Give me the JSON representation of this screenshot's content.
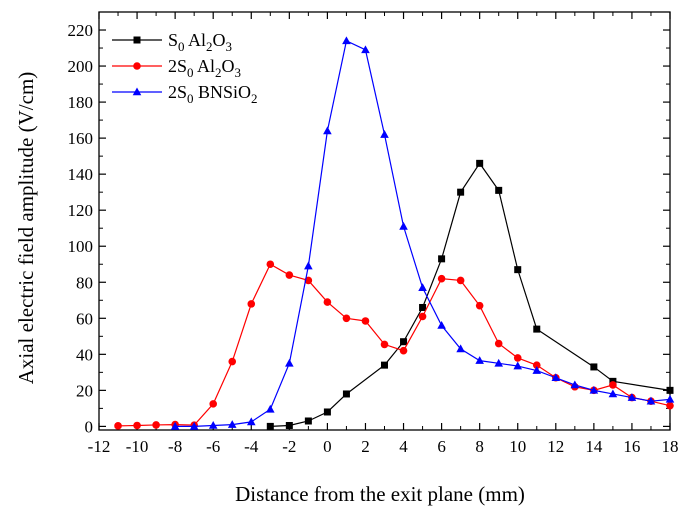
{
  "chart_data": {
    "type": "line",
    "xlabel": "Distance from the exit plane (mm)",
    "ylabel": "Axial electric field amplitude (V/cm)",
    "xlim": [
      -12,
      18
    ],
    "ylim": [
      -2,
      230
    ],
    "x_ticks": [
      -12,
      -10,
      -8,
      -6,
      -4,
      -2,
      0,
      2,
      4,
      6,
      8,
      10,
      12,
      14,
      16,
      18
    ],
    "y_ticks": [
      0,
      20,
      40,
      60,
      80,
      100,
      120,
      140,
      160,
      180,
      200,
      220
    ],
    "grid": false,
    "legend_position": "top-left",
    "series": [
      {
        "name": "S0 Al2O3",
        "legend": {
          "a": "S",
          "a_sub": "0",
          "b": " Al",
          "b_sub": "2",
          "c": "O",
          "c_sub": "3"
        },
        "color": "#000000",
        "marker": "square",
        "points": [
          [
            -3,
            0
          ],
          [
            -2,
            0.5
          ],
          [
            -1,
            3
          ],
          [
            0,
            8
          ],
          [
            1,
            18
          ],
          [
            3,
            34
          ],
          [
            4,
            47
          ],
          [
            5,
            66
          ],
          [
            6,
            93
          ],
          [
            7,
            130
          ],
          [
            8,
            146
          ],
          [
            9,
            131
          ],
          [
            10,
            87
          ],
          [
            11,
            54
          ],
          [
            14,
            33
          ],
          [
            15,
            25
          ],
          [
            18,
            20
          ]
        ]
      },
      {
        "name": "2S0 Al2O3",
        "legend": {
          "a": "2S",
          "a_sub": "0",
          "b": " Al",
          "b_sub": "2",
          "c": "O",
          "c_sub": "3"
        },
        "color": "#ff0000",
        "marker": "circle",
        "points": [
          [
            -11,
            0.3
          ],
          [
            -10,
            0.5
          ],
          [
            -9,
            0.8
          ],
          [
            -8,
            1
          ],
          [
            -7,
            0.7
          ],
          [
            -6,
            12.5
          ],
          [
            -5,
            36
          ],
          [
            -4,
            68
          ],
          [
            -3,
            90
          ],
          [
            -2,
            84
          ],
          [
            -1,
            81
          ],
          [
            0,
            69
          ],
          [
            1,
            60
          ],
          [
            2,
            58.5
          ],
          [
            3,
            45.5
          ],
          [
            4,
            42
          ],
          [
            5,
            61
          ],
          [
            6,
            82
          ],
          [
            7,
            81
          ],
          [
            8,
            67
          ],
          [
            9,
            46
          ],
          [
            10,
            38
          ],
          [
            11,
            34
          ],
          [
            12,
            27
          ],
          [
            13,
            22
          ],
          [
            14,
            20
          ],
          [
            15,
            23
          ],
          [
            16,
            16
          ],
          [
            17,
            14
          ],
          [
            18,
            11.5
          ]
        ]
      },
      {
        "name": "2S0 BNSiO2",
        "legend": {
          "a": "2S",
          "a_sub": "0",
          "b": " BNSiO",
          "b_sub": "2",
          "c": "",
          "c_sub": ""
        },
        "color": "#0000ff",
        "marker": "triangle",
        "points": [
          [
            -8,
            0
          ],
          [
            -7,
            0
          ],
          [
            -6,
            0.5
          ],
          [
            -5,
            1
          ],
          [
            -4,
            2.5
          ],
          [
            -3,
            9.5
          ],
          [
            -2,
            35
          ],
          [
            -1,
            89
          ],
          [
            0,
            164
          ],
          [
            1,
            214
          ],
          [
            2,
            209
          ],
          [
            3,
            162
          ],
          [
            4,
            111
          ],
          [
            5,
            77
          ],
          [
            6,
            56
          ],
          [
            7,
            43
          ],
          [
            8,
            36.5
          ],
          [
            9,
            35
          ],
          [
            10,
            33.5
          ],
          [
            11,
            31
          ],
          [
            12,
            27
          ],
          [
            13,
            23
          ],
          [
            14,
            20
          ],
          [
            15,
            18
          ],
          [
            16,
            16
          ],
          [
            17,
            14
          ],
          [
            18,
            15
          ]
        ]
      }
    ]
  }
}
